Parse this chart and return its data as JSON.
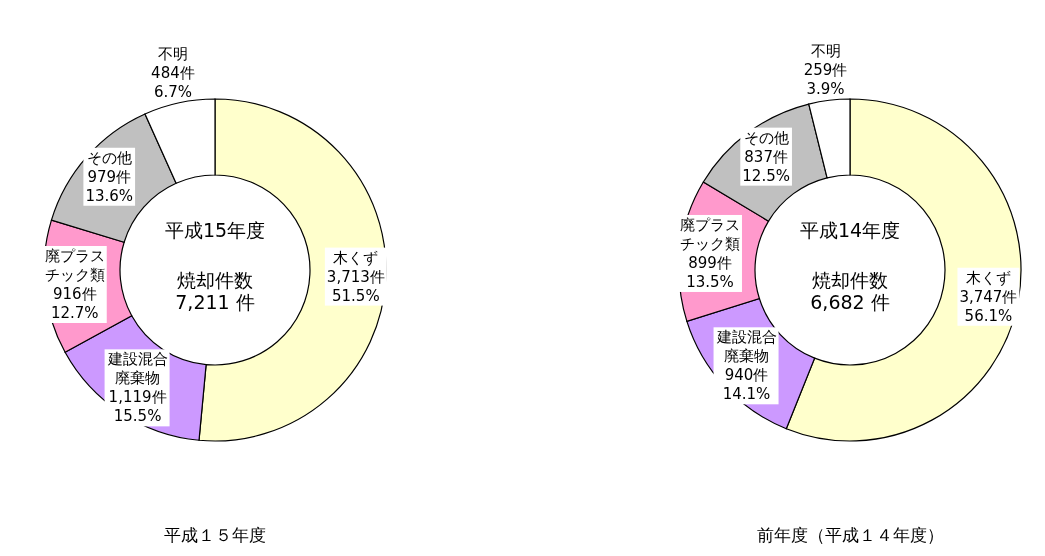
{
  "chart_data": [
    {
      "type": "donut",
      "title": "平成１５年度",
      "categories": [
        "木くず",
        "建設混合廃棄物",
        "廃プラスチック類",
        "その他",
        "不明"
      ],
      "values": [
        3713,
        1119,
        916,
        979,
        484
      ],
      "value_labels": [
        "3,713件 51.5%",
        "1,119件 15.5%",
        "916件 12.7%",
        "979件 13.6%",
        "484件 6.7%"
      ],
      "colors": [
        "#ffffcc",
        "#cc99ff",
        "#ff99cc",
        "#c0c0c0",
        "#ffffff"
      ],
      "annotations": [
        "平成15年度",
        "焼却件数",
        "7,211 件"
      ]
    },
    {
      "type": "donut",
      "title": "前年度（平成１４年度）",
      "categories": [
        "木くず",
        "建設混合廃棄物",
        "廃プラスチック類",
        "その他",
        "不明"
      ],
      "values": [
        3747,
        940,
        899,
        837,
        259
      ],
      "value_labels": [
        "3,747件 56.1%",
        "940件 14.1%",
        "899件 13.5%",
        "837件 12.5%",
        "259件 3.9%"
      ],
      "colors": [
        "#ffffcc",
        "#cc99ff",
        "#ff99cc",
        "#c0c0c0",
        "#ffffff"
      ],
      "annotations": [
        "平成14年度",
        "焼却件数",
        "6,682 件"
      ]
    }
  ]
}
